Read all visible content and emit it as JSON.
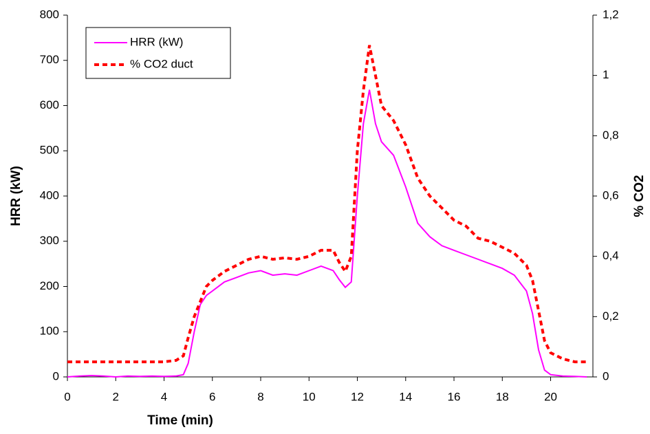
{
  "chart_data": {
    "type": "line",
    "x_label": "Time (min)",
    "y_label": "HRR (kW)",
    "y2_label": "% CO2",
    "x": [
      0,
      0.5,
      1,
      1.5,
      2,
      2.5,
      3,
      3.5,
      4,
      4.5,
      4.8,
      5,
      5.25,
      5.5,
      5.75,
      6,
      6.5,
      7,
      7.5,
      8,
      8.5,
      9,
      9.5,
      10,
      10.5,
      11,
      11.25,
      11.5,
      11.75,
      12,
      12.25,
      12.5,
      12.75,
      13,
      13.5,
      14,
      14.5,
      15,
      15.5,
      16,
      16.5,
      17,
      17.5,
      18,
      18.5,
      19,
      19.25,
      19.5,
      19.75,
      20,
      20.5,
      21,
      21.5
    ],
    "series": [
      {
        "name": "HRR (kW)",
        "color": "#ff00ff",
        "style": "solid",
        "values": [
          0,
          2,
          3,
          2,
          0,
          2,
          1,
          2,
          1,
          2,
          5,
          30,
          100,
          160,
          180,
          190,
          210,
          220,
          230,
          235,
          225,
          228,
          225,
          235,
          245,
          235,
          215,
          198,
          210,
          400,
          560,
          635,
          560,
          520,
          490,
          420,
          340,
          310,
          290,
          280,
          270,
          260,
          250,
          240,
          225,
          190,
          140,
          60,
          15,
          5,
          2,
          1,
          0
        ]
      },
      {
        "name": "% CO2 duct",
        "color": "#ff0000",
        "style": "dashed",
        "axis": "y2",
        "values": [
          0.05,
          0.05,
          0.05,
          0.05,
          0.05,
          0.05,
          0.05,
          0.05,
          0.05,
          0.055,
          0.07,
          0.13,
          0.2,
          0.25,
          0.3,
          0.32,
          0.35,
          0.37,
          0.39,
          0.4,
          0.39,
          0.395,
          0.39,
          0.4,
          0.42,
          0.42,
          0.38,
          0.35,
          0.4,
          0.75,
          0.95,
          1.1,
          1.0,
          0.9,
          0.85,
          0.77,
          0.66,
          0.6,
          0.56,
          0.52,
          0.5,
          0.46,
          0.45,
          0.43,
          0.41,
          0.37,
          0.32,
          0.22,
          0.12,
          0.08,
          0.06,
          0.05,
          0.05
        ]
      }
    ],
    "xlim": [
      0,
      21.75
    ],
    "xticks": [
      0,
      2,
      4,
      6,
      8,
      10,
      12,
      14,
      16,
      18,
      20
    ],
    "ylim": [
      0,
      800
    ],
    "yticks": [
      0,
      100,
      200,
      300,
      400,
      500,
      600,
      700,
      800
    ],
    "y2lim": [
      0,
      1.2
    ],
    "y2ticks": [
      0,
      {
        "value": 0.2,
        "label": "0,2"
      },
      {
        "value": 0.4,
        "label": "0,4"
      },
      {
        "value": 0.6,
        "label": "0,6"
      },
      {
        "value": 0.8,
        "label": "0,8"
      },
      1,
      {
        "value": 1.2,
        "label": "1,2"
      }
    ],
    "legend": "upper-left",
    "grid": false
  }
}
